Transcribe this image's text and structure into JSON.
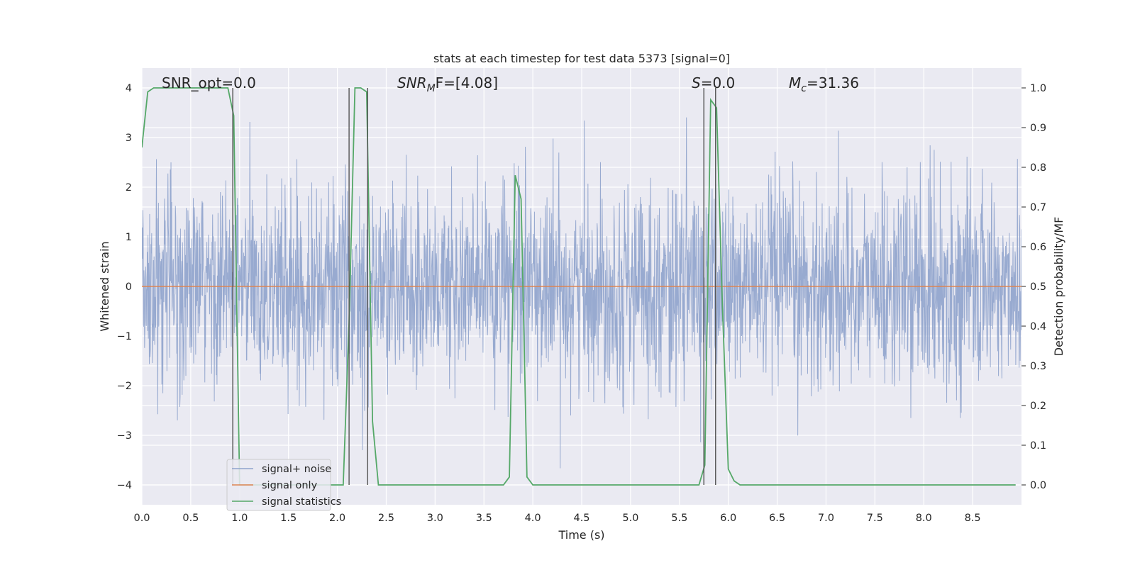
{
  "chart_data": {
    "type": "line",
    "title": "stats at each timestep for test data 5373 [signal=0]",
    "xlabel": "Time (s)",
    "ylabel_left": "Whitened strain",
    "ylabel_right": "Detection probability/MF",
    "xlim": [
      0.0,
      9.0
    ],
    "ylim_left": [
      -4.4,
      4.4
    ],
    "ylim_right": [
      -0.05,
      1.05
    ],
    "x_ticks": [
      "0.0",
      "0.5",
      "1.0",
      "1.5",
      "2.0",
      "2.5",
      "3.0",
      "3.5",
      "4.0",
      "4.5",
      "5.0",
      "5.5",
      "6.0",
      "6.5",
      "7.0",
      "7.5",
      "8.0",
      "8.5"
    ],
    "y_left_ticks": [
      "4",
      "3",
      "2",
      "1",
      "0",
      "−1",
      "−2",
      "−3",
      "−4"
    ],
    "y_right_ticks": [
      "1.0",
      "0.9",
      "0.8",
      "0.7",
      "0.6",
      "0.5",
      "0.4",
      "0.3",
      "0.2",
      "0.1",
      "0.0"
    ],
    "grid": true,
    "legend_position": "lower-left",
    "annotations": {
      "snr_opt": "SNR_opt=0.0",
      "snr_mf_base": "SNR",
      "snr_mf_sub": "M",
      "snr_mf_rest": "F=[4.08]",
      "s_italic": "S",
      "s_rest": "=0.0",
      "mc_base": "M",
      "mc_sub": "c",
      "mc_rest": "=31.36"
    },
    "series": [
      {
        "name": "signal+ noise",
        "color": "#8fa3cc",
        "axis": "left",
        "kind": "noise",
        "amplitude_sigma": 1.0,
        "duration_s": 9.0
      },
      {
        "name": "signal only",
        "color": "#dd8452",
        "axis": "left",
        "kind": "line",
        "x": [
          0.0,
          9.0
        ],
        "y": [
          0.0,
          0.0
        ]
      },
      {
        "name": "signal statistics",
        "color": "#55a868",
        "axis": "right",
        "kind": "line",
        "x": [
          0.0,
          0.06,
          0.12,
          0.18,
          0.3,
          0.5,
          0.7,
          0.88,
          0.94,
          1.0,
          2.06,
          2.12,
          2.18,
          2.24,
          2.3,
          2.36,
          2.42,
          2.48,
          3.0,
          3.5,
          3.7,
          3.76,
          3.82,
          3.88,
          3.94,
          4.0,
          4.06,
          4.12,
          4.5,
          5.0,
          5.5,
          5.7,
          5.76,
          5.82,
          5.88,
          5.94,
          6.0,
          6.06,
          6.12,
          6.5,
          7.0,
          7.5,
          8.0,
          8.5,
          8.94
        ],
        "y": [
          0.85,
          0.99,
          1.0,
          1.0,
          1.0,
          1.0,
          1.0,
          1.0,
          0.93,
          0.0,
          0.0,
          0.41,
          1.0,
          1.0,
          0.99,
          0.16,
          0.0,
          0.0,
          0.0,
          0.0,
          0.0,
          0.02,
          0.78,
          0.72,
          0.02,
          0.0,
          0.0,
          0.0,
          0.0,
          0.0,
          0.0,
          0.0,
          0.05,
          0.97,
          0.95,
          0.45,
          0.04,
          0.01,
          0.0,
          0.0,
          0.0,
          0.0,
          0.0,
          0.0,
          0.0
        ]
      }
    ],
    "vlines_x": [
      0.93,
      2.12,
      2.31,
      5.75,
      5.87
    ]
  }
}
